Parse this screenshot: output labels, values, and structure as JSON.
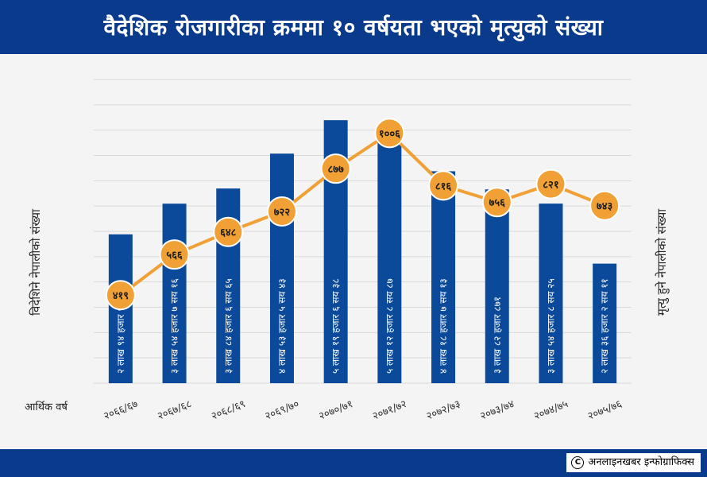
{
  "header": {
    "title": "वैदेशिक रोजगारीका क्रममा १० वर्षयता भएको मृत्युको संख्या"
  },
  "footer": {
    "credit": "अनलाइनखबर इन्फोग्राफिक्स",
    "credit_icon": "copyright-icon"
  },
  "colors": {
    "header": "#0a3a8c",
    "bar": "#0b4a9a",
    "line": "#f0a035",
    "marker": "#f0a035",
    "marker_stroke": "#ffffff",
    "grid": "#d9d9d9"
  },
  "chart_data": {
    "type": "bar",
    "title": "वैदेशिक रोजगारीका क्रममा १० वर्षयता भएको मृत्युको संख्या",
    "xlabel": "आर्थिक वर्ष",
    "ylabel_left": "विदेशिने नेपालीको संख्या",
    "ylabel_right": "मृत्यु हुने नेपालीको संख्या",
    "categories": [
      "२०६६/६७",
      "२०६७/६८",
      "२०६८/६९",
      "२०६९/७०",
      "२०७०/७१",
      "२०७१/७२",
      "२०७२/७३",
      "२०७३/७४",
      "२०७४/७५",
      "२०७५/७६"
    ],
    "grid": true,
    "series": [
      {
        "name": "विदेशिने नेपालीको संख्या",
        "kind": "bar",
        "values": [
          294097,
          354716,
          384665,
          453543,
          519638,
          512887,
          418713,
          382871,
          354825,
          236211
        ],
        "labels": [
          "२ लाख ९४ हजार ९७",
          "३ लाख ५४ हजार ७ सय १६",
          "३ लाख ८४ हजार ६ सय ६५",
          "४ लाख ५३ हजार ५ सय ४३",
          "५ लाख १९ हजार ६ सय ३८",
          "५ लाख १२ हजार ८ सय ८७",
          "४ लाख १८ हजार ७ सय १३",
          "३ लाख ८२ हजार ८७१",
          "३ लाख ५४ हजार ८ सय २५",
          "२ लाख ३६ हजार २ सय ११"
        ],
        "ylim": [
          0,
          600000
        ]
      },
      {
        "name": "मृत्यु हुने नेपालीको संख्या",
        "kind": "line",
        "values": [
          419,
          566,
          648,
          722,
          877,
          1006,
          816,
          756,
          821,
          743
        ],
        "labels": [
          "४१९",
          "५६६",
          "६४८",
          "७२२",
          "८७७",
          "१००६",
          "८१६",
          "७५६",
          "८२१",
          "७४३"
        ],
        "ylim": [
          100,
          1200
        ]
      }
    ]
  }
}
